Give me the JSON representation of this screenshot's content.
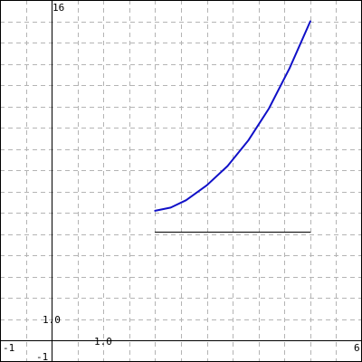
{
  "chart_data": {
    "type": "line",
    "xlim": [
      -1,
      6
    ],
    "ylim": [
      -1,
      16
    ],
    "grid": true,
    "grid_step": {
      "x": 0.5,
      "y": 1
    },
    "corner_labels": {
      "x_min": "-1",
      "x_max": "6",
      "y_min": "-1",
      "y_max": "16"
    },
    "tick_labels": [
      {
        "axis": "x",
        "value": 1,
        "text": "1.0"
      },
      {
        "axis": "y",
        "value": 1,
        "text": "1.0"
      }
    ],
    "series": [
      {
        "color": "#1010c8",
        "x": [
          2,
          2.3,
          2.6,
          3.0,
          3.4,
          3.8,
          4.2,
          4.6,
          5.0
        ],
        "y": [
          6.1,
          6.25,
          6.6,
          7.3,
          8.2,
          9.4,
          10.9,
          12.8,
          15.0
        ]
      },
      {
        "color": "#000000",
        "x": [
          2,
          5
        ],
        "y": [
          5.1,
          5.1
        ]
      }
    ]
  }
}
